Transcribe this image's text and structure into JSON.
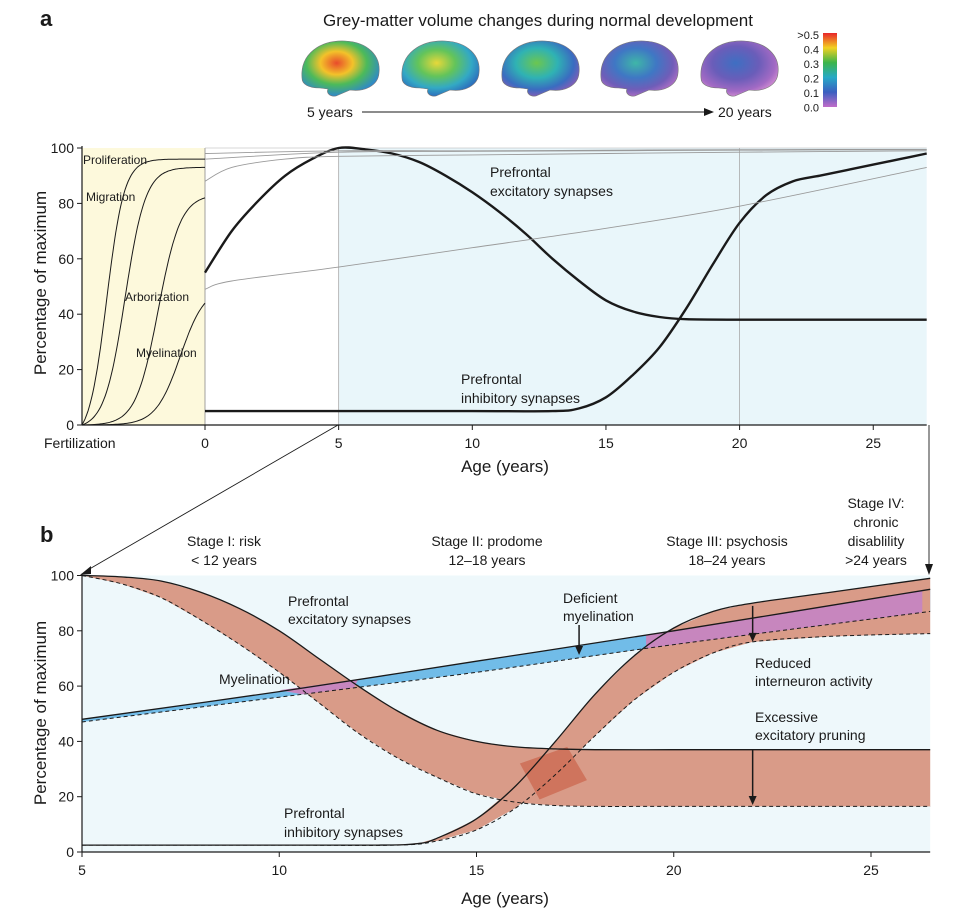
{
  "figure": {
    "colors": {
      "early_bg": "#fdf9dc",
      "adolescent_bg": "#e9f6fa",
      "panel_b_bg": "#eef8fb",
      "pathology_fill": "#d99b88",
      "pathology_overlap": "#cc6a52",
      "myelination_deficit": "#5ab2e4",
      "overlap_purple": "#c786be",
      "curve": "#1a1a1a",
      "thin_curve": "#9a9a9a"
    }
  },
  "panel_a": {
    "letter": "a",
    "brain_title": "Grey-matter volume changes during normal development",
    "brain_start": "5 years",
    "brain_end": "20 years",
    "brain_icons": [
      "brain-5y",
      "brain-9y",
      "brain-12y",
      "brain-16y",
      "brain-20y"
    ],
    "colorbar_labels": [
      ">0.5",
      "0.4",
      "0.3",
      "0.2",
      "0.1",
      "0.0"
    ],
    "ylabel": "Percentage of maximum",
    "xlabel": "Age (years)",
    "x_fert_label": "Fertilization",
    "curve_labels": {
      "proliferation": "Proliferation",
      "migration": "Migration",
      "arborization": "Arborization",
      "myelination": "Myelination",
      "excitatory_1": "Prefrontal",
      "excitatory_2": "excitatory synapses",
      "inhibitory_1": "Prefrontal",
      "inhibitory_2": "inhibitory synapses"
    }
  },
  "panel_b": {
    "letter": "b",
    "ylabel": "Percentage of maximum",
    "xlabel": "Age (years)",
    "stages": [
      {
        "lines": [
          "Stage I: risk",
          "< 12 years"
        ]
      },
      {
        "lines": [
          "Stage II: prodome",
          "12–18 years"
        ]
      },
      {
        "lines": [
          "Stage III: psychosis",
          "18–24 years"
        ]
      },
      {
        "lines": [
          "Stage IV:",
          "chronic",
          "disablility",
          ">24 years"
        ]
      }
    ],
    "labels": {
      "excitatory_1": "Prefrontal",
      "excitatory_2": "excitatory synapses",
      "myelination": "Myelination",
      "deficient_1": "Deficient",
      "deficient_2": "myelination",
      "reduced_1": "Reduced",
      "reduced_2": "interneuron activity",
      "pruning_1": "Excessive",
      "pruning_2": "excitatory pruning",
      "inhibitory_1": "Prefrontal",
      "inhibitory_2": "inhibitory synapses"
    }
  },
  "chart_data": [
    {
      "type": "line",
      "title": "",
      "xlabel": "Age (years)",
      "ylabel": "Percentage of maximum",
      "xlim": [
        0,
        27
      ],
      "ylim": [
        0,
        100
      ],
      "x_ticks": [
        0,
        5,
        10,
        15,
        20,
        25
      ],
      "x_tick_labels": [
        "0",
        "5",
        "10",
        "15",
        "20",
        "25"
      ],
      "y_ticks": [
        0,
        20,
        40,
        60,
        80,
        100
      ],
      "y_tick_labels": [
        "0",
        "20",
        "40",
        "60",
        "80",
        "100"
      ],
      "prenatal_tick_label": "Fertilization",
      "grid": false,
      "series": [
        {
          "name": "Prefrontal excitatory synapses",
          "x": [
            0,
            1,
            2,
            3,
            4,
            5,
            6,
            7,
            8,
            9,
            10,
            11,
            12,
            13,
            14,
            15,
            16,
            17,
            18,
            20,
            22,
            24,
            27
          ],
          "y": [
            55,
            70,
            81,
            90,
            96,
            100,
            99.5,
            98,
            95,
            90,
            84,
            77,
            69,
            60,
            52,
            45,
            41,
            39,
            38.2,
            38,
            38,
            38,
            38
          ]
        },
        {
          "name": "Prefrontal inhibitory synapses",
          "x": [
            0,
            5,
            10,
            13,
            14,
            15,
            16,
            17,
            18,
            19,
            20,
            21,
            22,
            23,
            24,
            25,
            26,
            27
          ],
          "y": [
            5,
            5,
            5,
            5,
            6,
            10,
            18,
            28,
            42,
            58,
            73,
            83,
            88,
            90,
            92,
            94,
            96,
            98
          ]
        },
        {
          "name": "Proliferation",
          "x": [
            -1,
            0,
            5,
            10,
            15,
            20,
            27
          ],
          "y": [
            96,
            98,
            99,
            99,
            99.2,
            99.4,
            99.5
          ]
        },
        {
          "name": "Migration",
          "x": [
            -1,
            0,
            5,
            10,
            15,
            20,
            27
          ],
          "y": [
            93,
            96,
            98.5,
            98.8,
            99,
            99.2,
            99.4
          ]
        },
        {
          "name": "Arborization",
          "x": [
            -1,
            0,
            1,
            3,
            5,
            10,
            15,
            20,
            27
          ],
          "y": [
            82,
            88,
            93,
            96,
            97,
            97.5,
            98,
            98.5,
            99
          ]
        },
        {
          "name": "Myelination",
          "x": [
            -1,
            0,
            1,
            5,
            10,
            15,
            20,
            27
          ],
          "y": [
            44,
            49,
            52,
            57,
            64,
            71,
            79,
            93
          ]
        }
      ]
    },
    {
      "type": "area",
      "title": "",
      "xlabel": "Age (years)",
      "ylabel": "Percentage of maximum",
      "xlim": [
        5,
        26.5
      ],
      "ylim": [
        0,
        100
      ],
      "x_ticks": [
        5,
        10,
        15,
        20,
        25
      ],
      "x_tick_labels": [
        "5",
        "10",
        "15",
        "20",
        "25"
      ],
      "y_ticks": [
        0,
        20,
        40,
        60,
        80,
        100
      ],
      "y_tick_labels": [
        "0",
        "20",
        "40",
        "60",
        "80",
        "100"
      ],
      "grid": false,
      "series": [
        {
          "name": "Prefrontal excitatory synapses",
          "x": [
            5,
            6,
            7,
            8,
            9,
            10,
            11,
            12,
            13,
            14,
            15,
            16,
            17,
            18,
            20,
            22,
            24,
            26.5
          ],
          "y": [
            100,
            99.5,
            98,
            94,
            88,
            80,
            70,
            60,
            51,
            44,
            40,
            38,
            37.3,
            37,
            37,
            37,
            37,
            37
          ]
        },
        {
          "name": "Prefrontal excitatory synapses (impaired)",
          "x": [
            5,
            6,
            7,
            8,
            9,
            10,
            11,
            12,
            13,
            14,
            15,
            16,
            17,
            18,
            20,
            22,
            24,
            26.5
          ],
          "y": [
            100,
            97,
            92,
            84,
            75,
            65,
            54,
            43,
            34,
            27,
            21,
            18,
            16.8,
            16.5,
            16.5,
            16.5,
            16.5,
            16.5
          ]
        },
        {
          "name": "Myelination",
          "x": [
            5,
            10,
            15,
            20,
            26.5
          ],
          "y": [
            48,
            58,
            69,
            80,
            95
          ]
        },
        {
          "name": "Myelination (impaired)",
          "x": [
            5,
            10,
            15,
            20,
            26.5
          ],
          "y": [
            47,
            56,
            65,
            75,
            87
          ]
        },
        {
          "name": "Prefrontal inhibitory synapses",
          "x": [
            5,
            10,
            12.5,
            13.5,
            14,
            15,
            16,
            17,
            18,
            19,
            20,
            21,
            22,
            24,
            26.5
          ],
          "y": [
            2.5,
            2.5,
            2.5,
            3,
            5,
            12,
            24,
            40,
            57,
            71,
            81,
            87,
            90,
            94,
            99
          ]
        },
        {
          "name": "Prefrontal inhibitory synapses (impaired)",
          "x": [
            5,
            10,
            13,
            14,
            15,
            16,
            17,
            18,
            19,
            20,
            21,
            22,
            24,
            26.5
          ],
          "y": [
            2.5,
            2.5,
            2.5,
            4,
            8,
            16,
            28,
            42,
            55,
            65,
            72,
            76,
            78,
            79
          ]
        }
      ]
    }
  ]
}
